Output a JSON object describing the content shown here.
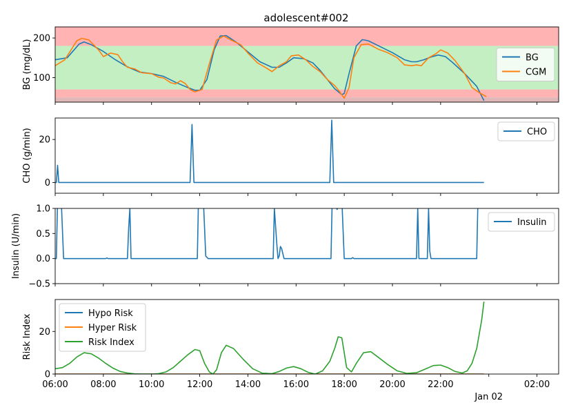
{
  "figure": {
    "title": "adolescent#002",
    "x_ticks": [
      "06:00",
      "08:00",
      "10:00",
      "12:00",
      "14:00",
      "16:00",
      "18:00",
      "20:00",
      "22:00",
      "02:00"
    ],
    "x_tick_hours": [
      6,
      8,
      10,
      12,
      14,
      16,
      18,
      20,
      22,
      26
    ],
    "x_date_label": "Jan 02",
    "x_date_hour": 24
  },
  "chart_data": [
    {
      "type": "line",
      "ylabel": "BG (mg/dL)",
      "xlim_hours": [
        6,
        26.9
      ],
      "ylim": [
        38,
        228
      ],
      "yticks": [
        100,
        200
      ],
      "bands": [
        {
          "from": 180,
          "to": 228,
          "color": "#ffb3b3"
        },
        {
          "from": 70,
          "to": 180,
          "color": "#c3efc3"
        },
        {
          "from": 50,
          "to": 70,
          "color": "#ffb3b3"
        },
        {
          "from": 38,
          "to": 50,
          "color": "#e0b8b8"
        }
      ],
      "legend": "right",
      "series": [
        {
          "name": "BG",
          "color": "#1f77b4",
          "x": [
            6.0,
            6.5,
            7.0,
            7.2,
            7.5,
            8.0,
            8.5,
            9.0,
            9.5,
            10.0,
            10.5,
            11.0,
            11.5,
            11.8,
            12.0,
            12.3,
            12.6,
            12.85,
            13.1,
            13.5,
            14.0,
            14.5,
            15.0,
            15.3,
            15.6,
            15.9,
            16.3,
            16.7,
            17.0,
            17.3,
            17.6,
            17.9,
            18.0,
            18.2,
            18.5,
            18.75,
            19.0,
            19.5,
            20.0,
            20.5,
            20.8,
            21.0,
            21.3,
            21.6,
            21.9,
            22.2,
            22.5,
            23.0,
            23.5,
            23.8
          ],
          "values": [
            145,
            150,
            185,
            190,
            183,
            166,
            145,
            127,
            114,
            110,
            103,
            88,
            75,
            68,
            68,
            95,
            170,
            205,
            206,
            190,
            165,
            140,
            126,
            126,
            137,
            150,
            148,
            137,
            118,
            95,
            72,
            57,
            60,
            110,
            180,
            196,
            193,
            178,
            163,
            145,
            140,
            140,
            145,
            152,
            157,
            153,
            138,
            110,
            78,
            42
          ]
        },
        {
          "name": "CGM",
          "color": "#ff7f0e",
          "x": [
            6.0,
            6.4,
            6.9,
            7.1,
            7.4,
            7.8,
            8.0,
            8.3,
            8.6,
            8.8,
            9.0,
            9.3,
            9.6,
            10.0,
            10.3,
            10.5,
            10.8,
            11.0,
            11.2,
            11.4,
            11.6,
            11.8,
            12.1,
            12.4,
            12.7,
            13.0,
            13.3,
            13.7,
            14.0,
            14.4,
            14.8,
            15.0,
            15.3,
            15.6,
            15.8,
            16.1,
            16.4,
            16.7,
            17.0,
            17.3,
            17.6,
            17.8,
            18.0,
            18.2,
            18.4,
            18.7,
            19.0,
            19.4,
            19.8,
            20.2,
            20.5,
            20.8,
            21.0,
            21.2,
            21.5,
            21.8,
            22.0,
            22.3,
            22.6,
            23.0,
            23.3,
            23.6,
            23.9
          ],
          "values": [
            130,
            145,
            193,
            199,
            195,
            170,
            153,
            162,
            158,
            140,
            126,
            122,
            112,
            110,
            101,
            99,
            87,
            84,
            92,
            85,
            70,
            64,
            70,
            135,
            195,
            205,
            195,
            183,
            162,
            137,
            123,
            115,
            130,
            140,
            155,
            157,
            145,
            128,
            115,
            95,
            80,
            65,
            48,
            75,
            150,
            183,
            185,
            172,
            163,
            150,
            132,
            130,
            132,
            130,
            150,
            160,
            170,
            162,
            143,
            110,
            75,
            62,
            52
          ]
        }
      ]
    },
    {
      "type": "line",
      "ylabel": "CHO (g/min)",
      "xlim_hours": [
        6,
        26.9
      ],
      "ylim": [
        -5,
        30
      ],
      "yticks": [
        0,
        20
      ],
      "legend": "upper right",
      "series": [
        {
          "name": "CHO",
          "color": "#1f77b4",
          "x": [
            6.0,
            6.05,
            6.1,
            6.15,
            11.6,
            11.68,
            11.76,
            17.4,
            17.48,
            17.56,
            23.8
          ],
          "values": [
            0,
            0,
            8,
            0,
            0,
            27,
            0,
            0,
            29,
            0,
            0
          ]
        }
      ]
    },
    {
      "type": "line",
      "ylabel": "Insulin (U/min)",
      "xlim_hours": [
        6,
        26.9
      ],
      "ylim": [
        -0.5,
        1.0
      ],
      "yticks": [
        -0.5,
        0.0,
        0.5,
        1.0
      ],
      "ytick_labels": [
        "−0.5",
        "0.0",
        "0.5",
        "1.0"
      ],
      "legend": "upper right",
      "series": [
        {
          "name": "Insulin",
          "color": "#1f77b4",
          "x": [
            6.0,
            6.05,
            6.1,
            6.25,
            6.35,
            8.1,
            8.15,
            8.2,
            9.0,
            9.05,
            9.1,
            9.15,
            11.9,
            11.95,
            12.0,
            12.15,
            12.25,
            12.35,
            15.05,
            15.1,
            15.2,
            15.25,
            15.3,
            15.35,
            15.4,
            15.5,
            17.45,
            17.5,
            17.6,
            17.7,
            17.9,
            18.0,
            18.3,
            18.35,
            18.4,
            21.0,
            21.05,
            21.1,
            21.45,
            21.5,
            21.55,
            21.6,
            23.5,
            23.55
          ],
          "values": [
            0,
            0,
            1.2,
            1.2,
            0,
            0,
            0.01,
            0,
            0,
            0.6,
            1.0,
            0,
            0,
            1.2,
            1.2,
            1.2,
            0.05,
            0,
            0,
            1.0,
            0.3,
            0,
            0.05,
            0.24,
            0.2,
            0,
            0,
            1.2,
            1.2,
            0.98,
            1.2,
            0,
            0,
            0.02,
            0,
            0,
            1.0,
            0,
            0,
            1.0,
            0.15,
            0,
            0,
            1.2
          ]
        }
      ]
    },
    {
      "type": "line",
      "ylabel": "Risk Index",
      "xlim_hours": [
        6,
        26.9
      ],
      "ylim": [
        0,
        35
      ],
      "yticks": [
        0,
        20
      ],
      "legend": "upper left",
      "series": [
        {
          "name": "Hypo Risk",
          "color": "#1f77b4",
          "x": [
            6,
            23.8
          ],
          "values": [
            0,
            0
          ]
        },
        {
          "name": "Hyper Risk",
          "color": "#ff7f0e",
          "x": [
            6,
            23.8
          ],
          "values": [
            0,
            0
          ]
        },
        {
          "name": "Risk Index",
          "color": "#2ca02c",
          "x": [
            6.0,
            6.3,
            6.6,
            6.9,
            7.2,
            7.5,
            7.8,
            8.1,
            8.4,
            8.7,
            9.0,
            9.3,
            9.6,
            10.0,
            10.3,
            10.6,
            10.9,
            11.2,
            11.5,
            11.8,
            12.0,
            12.2,
            12.4,
            12.55,
            12.7,
            12.9,
            13.1,
            13.4,
            13.8,
            14.2,
            14.6,
            15.0,
            15.3,
            15.6,
            15.9,
            16.2,
            16.5,
            16.8,
            17.1,
            17.4,
            17.6,
            17.75,
            17.9,
            18.1,
            18.3,
            18.5,
            18.8,
            19.1,
            19.4,
            19.8,
            20.2,
            20.6,
            21.0,
            21.4,
            21.7,
            22.0,
            22.3,
            22.6,
            22.9,
            23.1,
            23.3,
            23.5,
            23.7,
            23.8
          ],
          "values": [
            2.5,
            3,
            5,
            8,
            10,
            9.5,
            7.5,
            5,
            2.8,
            1.2,
            0.5,
            0.1,
            0,
            0,
            0.2,
            1,
            3,
            6,
            9,
            11.5,
            11,
            5,
            1,
            0,
            2,
            10,
            13.5,
            12,
            7,
            2.5,
            0.4,
            0.2,
            1.2,
            2.8,
            3.5,
            2.5,
            0.8,
            0,
            1.5,
            6,
            12,
            17.5,
            17,
            3,
            1,
            5,
            10,
            10.5,
            8,
            4.5,
            1.5,
            0.3,
            0.6,
            2.5,
            4,
            4.2,
            3,
            1.2,
            0.5,
            1.5,
            5,
            12,
            25,
            34
          ]
        }
      ]
    }
  ]
}
